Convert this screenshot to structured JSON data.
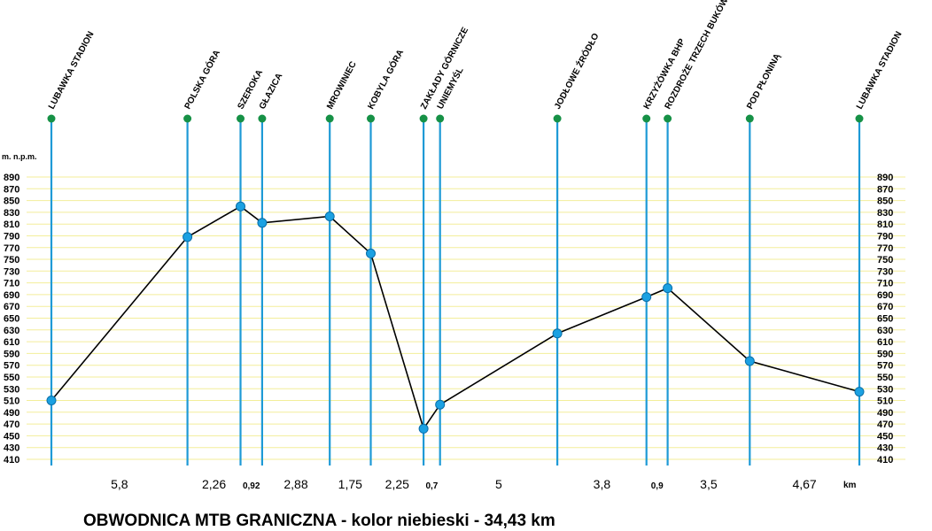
{
  "chart_data": {
    "type": "line",
    "title": "OBWODNICA MTB GRANICZNA - kolor niebieski - 34,43 km",
    "ylabel": "m. n.p.m.",
    "distance_unit": "km",
    "ylim": [
      410,
      890
    ],
    "y_ticks": [
      "890",
      "870",
      "850",
      "830",
      "810",
      "790",
      "770",
      "750",
      "730",
      "710",
      "690",
      "670",
      "650",
      "630",
      "610",
      "590",
      "570",
      "550",
      "530",
      "510",
      "490",
      "470",
      "450",
      "430",
      "410"
    ],
    "points": [
      {
        "name": "LUBAWKA STADION",
        "km": 0,
        "elevation": 510
      },
      {
        "name": "POLSKA GÓRA",
        "km": 5.8,
        "elevation": 788
      },
      {
        "name": "SZEROKA",
        "km": 8.06,
        "elevation": 840
      },
      {
        "name": "GŁAZICA",
        "km": 8.98,
        "elevation": 812
      },
      {
        "name": "MROWINIEC",
        "km": 11.86,
        "elevation": 823
      },
      {
        "name": "KOBYLA GÓRA",
        "km": 13.61,
        "elevation": 760
      },
      {
        "name": "ZAKŁADY GÓRNICZE",
        "km": 15.86,
        "elevation": 462
      },
      {
        "name": "UNIEMYŚL",
        "km": 16.56,
        "elevation": 503
      },
      {
        "name": "JODŁOWE ŹRÓDŁO",
        "km": 21.56,
        "elevation": 624
      },
      {
        "name": "KRZYŻÓWKA BHP",
        "km": 25.36,
        "elevation": 686
      },
      {
        "name": "ROZDROŻE TRZECH BUKÓW",
        "km": 26.26,
        "elevation": 701
      },
      {
        "name": "POD PŁONINĄ",
        "km": 29.76,
        "elevation": 577
      },
      {
        "name": "LUBAWKA STADION",
        "km": 34.43,
        "elevation": 525
      }
    ],
    "segments": [
      "5,8",
      "2,26",
      "0,92",
      "2,88",
      "1,75",
      "2,25",
      "0,7",
      "5",
      "3,8",
      "0,9",
      "3,5",
      "4,67"
    ],
    "colors": {
      "line": "#000000",
      "marker": "#1ba1e2",
      "marker_stroke": "#0b6fa8",
      "vertical": "#1e9ad6",
      "top_dot": "#169146",
      "grid": "#f3ee9a"
    }
  }
}
